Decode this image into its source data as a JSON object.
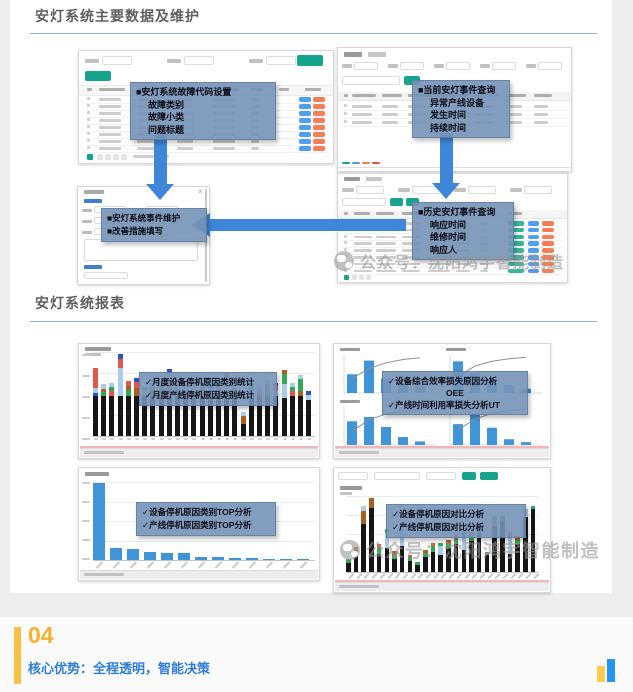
{
  "colors": {
    "teal": "#16a58c",
    "arrow": "#3e86d8",
    "callout_bg": "#7592b8",
    "rule": "#93b2d8",
    "heading": "#5f5f5f",
    "chart_blue": "#4094d8",
    "watermark_gray": "#9b9b9b",
    "footer_yellow": "#f2b32a",
    "footer_blue": "#2e7cd6",
    "pill": {
      "blue": "#4f9ef0",
      "orange": "#f87c56",
      "green": "#35b79c"
    },
    "seg": {
      "k": "#161616",
      "lb": "#a9cdea",
      "g": "#33a852",
      "o": "#a9601f",
      "r": "#e2574d",
      "b": "#2b50c8"
    }
  },
  "section1": {
    "title": "安灯系统主要数据及维护"
  },
  "section2": {
    "title": "安灯系统报表"
  },
  "watermark": {
    "text": "公众号：沈阳鸿宇智能制造"
  },
  "callouts": {
    "fault_code": [
      "■安灯系统故障代码设置",
      "故障类别",
      "故障小类",
      "问题标题"
    ],
    "current_event": [
      "■当前安灯事件查询",
      "异常产线设备",
      "发生时间",
      "持续时间"
    ],
    "event_maintain": [
      "■安灯系统事件维护",
      "■改善措施填写"
    ],
    "history_event": [
      "■历史安灯事件查询",
      "响应时间",
      "维修时间",
      "响应人"
    ],
    "monthly_stats": [
      "✓月度设备停机原因类别统计",
      "✓月度产线停机原因类别统计"
    ],
    "oee_loss": [
      "✓设备综合效率损失原因分析",
      "OEE",
      "✓产线时间利用率损失分析UT"
    ],
    "top_analysis": [
      "✓设备停机原因类别TOP分析",
      "✓产线停机原因类别TOP分析"
    ],
    "compare_analysis": [
      "✓设备停机原因对比分析",
      "✓产线停机原因对比分析"
    ]
  },
  "footer": {
    "number": "04",
    "title": "核心优势：全程透明，智能决策"
  },
  "mock": {
    "s1_rows": 8,
    "s2_rows": 3,
    "s4_rows": 8,
    "close_glyph": "×"
  },
  "chart_data": [
    {
      "id": "monthly-downtime-stacked",
      "type": "bar",
      "variant": "stacked",
      "legend": "月度设备/产线停机原因类别统计",
      "bars": [
        [
          [
            "k",
            40
          ],
          [
            "b",
            3
          ],
          [
            "lb",
            5
          ],
          [
            "r",
            20
          ]
        ],
        [
          [
            "k",
            40
          ],
          [
            "g",
            4
          ],
          [
            "o",
            3
          ],
          [
            "lb",
            5
          ]
        ],
        [
          [
            "k",
            40
          ],
          [
            "r",
            5
          ],
          [
            "g",
            4
          ],
          [
            "lb",
            4
          ]
        ],
        [
          [
            "k",
            40
          ],
          [
            "lb",
            28
          ],
          [
            "r",
            9
          ],
          [
            "b",
            5
          ]
        ],
        [
          [
            "k",
            40
          ],
          [
            "g",
            6
          ],
          [
            "o",
            4
          ],
          [
            "r",
            5
          ]
        ],
        [
          [
            "k",
            40
          ],
          [
            "o",
            8
          ],
          [
            "r",
            6
          ],
          [
            "b",
            4
          ]
        ],
        [
          [
            "k",
            40
          ],
          [
            "lb",
            6
          ],
          [
            "g",
            3
          ]
        ],
        [
          [
            "k",
            40
          ],
          [
            "g",
            5
          ],
          [
            "r",
            4
          ],
          [
            "lb",
            8
          ]
        ],
        [
          [
            "k",
            40
          ],
          [
            "o",
            4
          ],
          [
            "g",
            6
          ],
          [
            "lb",
            4
          ]
        ],
        [
          [
            "k",
            40
          ],
          [
            "r",
            16
          ],
          [
            "lb",
            8
          ],
          [
            "b",
            3
          ]
        ],
        [
          [
            "k",
            40
          ],
          [
            "g",
            5
          ],
          [
            "o",
            3
          ],
          [
            "lb",
            4
          ]
        ],
        [
          [
            "k",
            40
          ],
          [
            "lb",
            10
          ],
          [
            "r",
            4
          ]
        ],
        [
          [
            "k",
            40
          ],
          [
            "g",
            4
          ],
          [
            "lb",
            6
          ],
          [
            "r",
            3
          ]
        ],
        [
          [
            "k",
            40
          ],
          [
            "o",
            6
          ],
          [
            "g",
            4
          ],
          [
            "lb",
            4
          ]
        ],
        [
          [
            "k",
            40
          ],
          [
            "lb",
            8
          ],
          [
            "b",
            4
          ]
        ],
        [
          [
            "k",
            40
          ],
          [
            "r",
            6
          ],
          [
            "g",
            5
          ],
          [
            "lb",
            4
          ]
        ],
        [
          [
            "k",
            38
          ],
          [
            "lb",
            20
          ],
          [
            "r",
            6
          ]
        ],
        [
          [
            "k",
            40
          ],
          [
            "g",
            4
          ],
          [
            "r",
            4
          ]
        ],
        [
          [
            "k",
            12
          ],
          [
            "o",
            8
          ],
          [
            "lb",
            4
          ]
        ],
        [
          [
            "k",
            40
          ],
          [
            "lb",
            6
          ],
          [
            "g",
            4
          ],
          [
            "o",
            3
          ]
        ],
        [
          [
            "k",
            40
          ],
          [
            "r",
            5
          ],
          [
            "lb",
            5
          ]
        ],
        [
          [
            "k",
            40
          ],
          [
            "g",
            8
          ],
          [
            "o",
            4
          ],
          [
            "lb",
            4
          ]
        ],
        [
          [
            "k",
            40
          ],
          [
            "lb",
            6
          ],
          [
            "r",
            4
          ],
          [
            "b",
            3
          ]
        ],
        [
          [
            "k",
            38
          ],
          [
            "lb",
            14
          ],
          [
            "g",
            10
          ],
          [
            "o",
            4
          ]
        ],
        [
          [
            "k",
            40
          ],
          [
            "r",
            5
          ],
          [
            "g",
            4
          ],
          [
            "lb",
            4
          ]
        ],
        [
          [
            "k",
            40
          ],
          [
            "o",
            5
          ],
          [
            "g",
            12
          ],
          [
            "lb",
            4
          ]
        ],
        [
          [
            "k",
            36
          ],
          [
            "lb",
            5
          ],
          [
            "b",
            4
          ]
        ]
      ]
    },
    {
      "id": "oee-ut-pareto",
      "type": "pareto",
      "legend": "设备综合效率损失原因分析 OEE / 产线时间利用率损失分析 UT",
      "quadrants": [
        {
          "bars": [
            52,
            90,
            40,
            26,
            18
          ],
          "line": [
            40,
            68,
            84,
            93,
            98
          ]
        },
        {
          "bars": [
            88,
            56,
            34,
            22,
            12
          ],
          "line": [
            46,
            75,
            88,
            95,
            99
          ]
        },
        {
          "bars": [
            66,
            78,
            50,
            22,
            10
          ],
          "line": [
            38,
            70,
            86,
            94,
            98
          ]
        },
        {
          "bars": [
            58,
            86,
            48,
            16,
            8
          ],
          "line": [
            42,
            72,
            88,
            95,
            99
          ]
        }
      ]
    },
    {
      "id": "downtime-top",
      "type": "bar",
      "legend": "设备/产线停机原因类别TOP分析",
      "values": [
        88,
        14,
        13,
        9,
        8.5,
        7.5,
        3,
        3,
        2.5,
        2,
        1.5,
        1.2,
        1
      ]
    },
    {
      "id": "downtime-compare-stacked",
      "type": "bar",
      "variant": "stacked",
      "legend": "设备/产线停机原因对比分析",
      "bars": [
        [
          [
            "k",
            10
          ],
          [
            "g",
            4
          ]
        ],
        [
          [
            "k",
            18
          ],
          [
            "g",
            5
          ],
          [
            "o",
            4
          ]
        ],
        [
          [
            "k",
            52
          ],
          [
            "o",
            14
          ],
          [
            "lb",
            6
          ]
        ],
        [
          [
            "k",
            70
          ],
          [
            "o",
            10
          ]
        ],
        [
          [
            "k",
            20
          ],
          [
            "g",
            6
          ],
          [
            "r",
            4
          ]
        ],
        [
          [
            "k",
            26
          ],
          [
            "lb",
            16
          ],
          [
            "g",
            5
          ]
        ],
        [
          [
            "k",
            14
          ],
          [
            "g",
            5
          ],
          [
            "o",
            4
          ]
        ],
        [
          [
            "k",
            28
          ],
          [
            "lb",
            20
          ],
          [
            "g",
            6
          ]
        ],
        [
          [
            "k",
            12
          ],
          [
            "g",
            4
          ],
          [
            "r",
            3
          ]
        ],
        [
          [
            "k",
            8
          ],
          [
            "g",
            3
          ]
        ],
        [
          [
            "k",
            16
          ],
          [
            "g",
            5
          ],
          [
            "o",
            3
          ]
        ],
        [
          [
            "k",
            22
          ],
          [
            "g",
            6
          ],
          [
            "r",
            4
          ]
        ],
        [
          [
            "k",
            18
          ],
          [
            "lb",
            10
          ],
          [
            "g",
            4
          ]
        ],
        [
          [
            "k",
            26
          ],
          [
            "g",
            5
          ],
          [
            "o",
            4
          ]
        ],
        [
          [
            "k",
            30
          ],
          [
            "g",
            6
          ],
          [
            "r",
            5
          ]
        ],
        [
          [
            "k",
            24
          ],
          [
            "lb",
            14
          ],
          [
            "g",
            5
          ]
        ],
        [
          [
            "k",
            34
          ],
          [
            "g",
            6
          ],
          [
            "r",
            4
          ]
        ],
        [
          [
            "k",
            42
          ],
          [
            "g",
            5
          ]
        ],
        [
          [
            "k",
            18
          ],
          [
            "g",
            4
          ]
        ],
        [
          [
            "k",
            50
          ],
          [
            "r",
            6
          ],
          [
            "g",
            5
          ]
        ],
        [
          [
            "k",
            56
          ],
          [
            "o",
            5
          ]
        ],
        [
          [
            "k",
            20
          ],
          [
            "lb",
            18
          ],
          [
            "r",
            6
          ]
        ],
        [
          [
            "k",
            30
          ],
          [
            "g",
            5
          ],
          [
            "o",
            4
          ]
        ],
        [
          [
            "k",
            60
          ],
          [
            "lb",
            8
          ]
        ],
        [
          [
            "k",
            68
          ],
          [
            "g",
            4
          ]
        ]
      ]
    }
  ]
}
